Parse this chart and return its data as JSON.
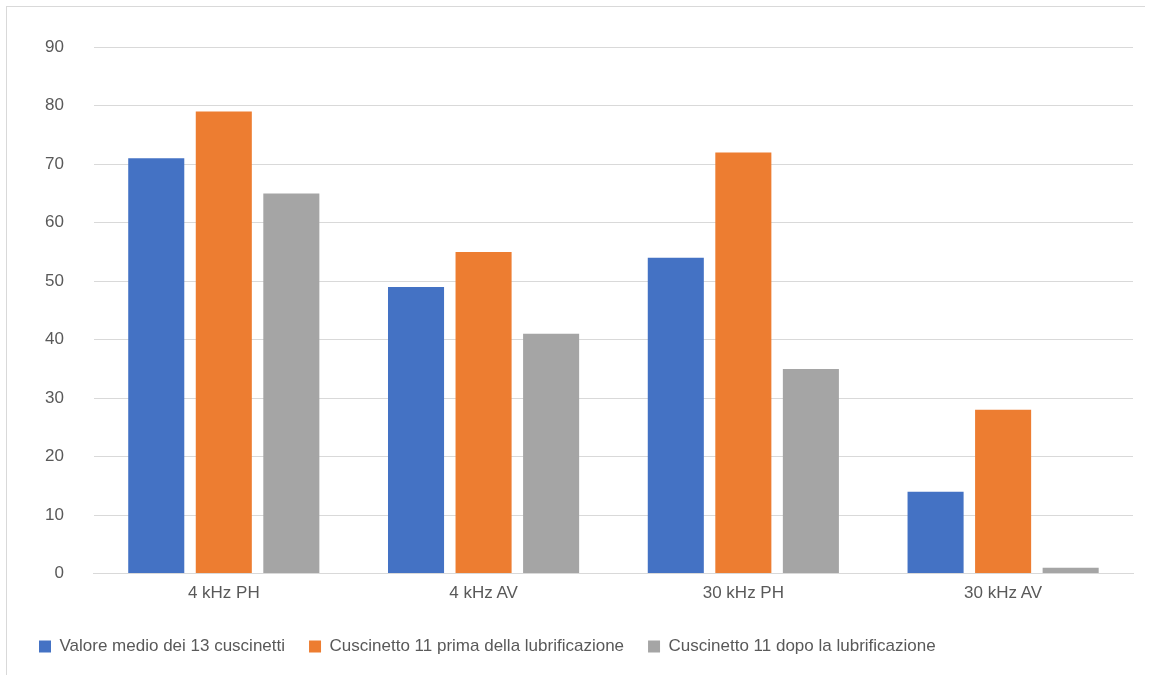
{
  "chart_data": {
    "type": "bar",
    "categories": [
      "4 kHz PH",
      "4 kHz AV",
      "30 kHz PH",
      "30 kHz AV"
    ],
    "series": [
      {
        "name": "Valore medio dei 13 cuscinetti",
        "color": "#4472c4",
        "values": [
          71,
          49,
          54,
          14
        ]
      },
      {
        "name": "Cuscinetto 11 prima della lubrificazione",
        "color": "#ed7d31",
        "values": [
          79,
          55,
          72,
          28
        ]
      },
      {
        "name": "Cuscinetto 11 dopo la lubrificazione",
        "color": "#a5a5a5",
        "values": [
          65,
          41,
          35,
          1
        ]
      }
    ],
    "ylim": [
      0,
      90
    ],
    "yticks": [
      0,
      10,
      20,
      30,
      40,
      50,
      60,
      70,
      80,
      90
    ],
    "grid": "y",
    "legend": "bottom"
  }
}
